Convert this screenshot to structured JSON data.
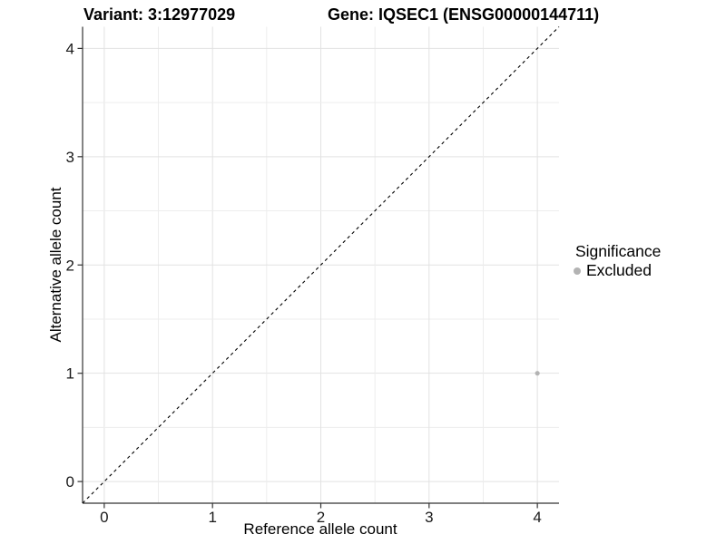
{
  "chart_data": {
    "type": "scatter",
    "title_left": "Variant: 3:12977029",
    "title_right": "Gene: IQSEC1 (ENSG00000144711)",
    "xlabel": "Reference allele count",
    "ylabel": "Alternative allele count",
    "x_ticks": [
      0,
      1,
      2,
      3,
      4
    ],
    "y_ticks": [
      0,
      1,
      2,
      3,
      4
    ],
    "xlim": [
      -0.2,
      4.2
    ],
    "ylim": [
      -0.2,
      4.2
    ],
    "grid": {
      "major_every": 1,
      "minor_every": 0.5,
      "major_color": "#e2e2e2",
      "minor_color": "#ededed"
    },
    "identity_line": {
      "style": "dashed",
      "from": [
        -0.2,
        -0.2
      ],
      "to": [
        4.2,
        4.2
      ],
      "color": "#000000"
    },
    "points": [
      {
        "x": 4,
        "y": 1,
        "significance": "Excluded",
        "color": "#b3b3b3",
        "radius": 2.6
      }
    ],
    "legend": {
      "title": "Significance",
      "position": "right",
      "entries": [
        {
          "label": "Excluded",
          "color": "#b3b3b3"
        }
      ]
    },
    "axis_color": "#333333",
    "tick_label_color": "#1a1a1a",
    "background": "#ffffff",
    "grid_on": true
  }
}
